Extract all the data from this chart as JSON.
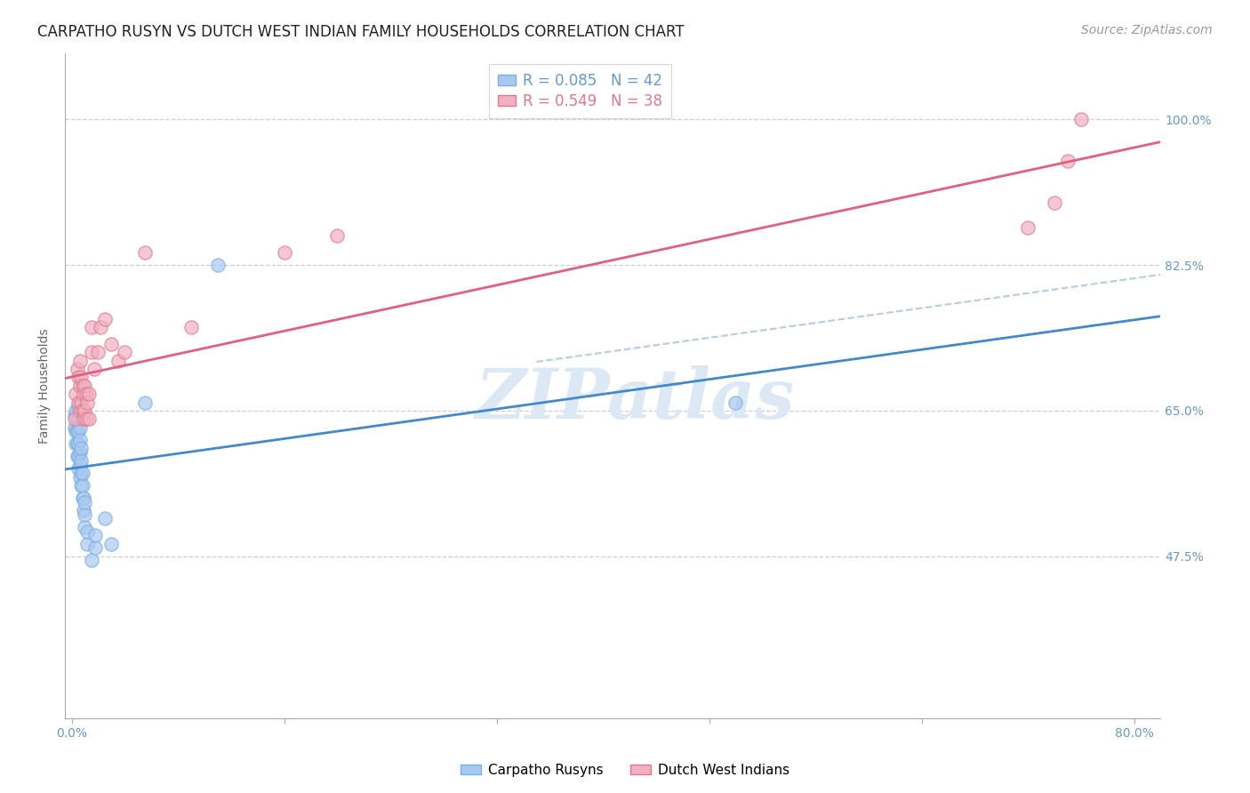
{
  "title": "CARPATHO RUSYN VS DUTCH WEST INDIAN FAMILY HOUSEHOLDS CORRELATION CHART",
  "source": "Source: ZipAtlas.com",
  "ylabel": "Family Households",
  "x_ticks": [
    0.0,
    0.16,
    0.32,
    0.48,
    0.64,
    0.8
  ],
  "x_tick_labels": [
    "0.0%",
    "",
    "",
    "",
    "",
    "80.0%"
  ],
  "y_ticks": [
    0.475,
    0.65,
    0.825,
    1.0
  ],
  "y_tick_labels": [
    "47.5%",
    "65.0%",
    "82.5%",
    "100.0%"
  ],
  "xlim": [
    -0.005,
    0.82
  ],
  "ylim": [
    0.28,
    1.08
  ],
  "legend_labels": [
    "R = 0.085   N = 42",
    "R = 0.549   N = 38"
  ],
  "carpatho_rusyns_x": [
    0.002,
    0.002,
    0.003,
    0.003,
    0.003,
    0.004,
    0.004,
    0.004,
    0.004,
    0.005,
    0.005,
    0.005,
    0.005,
    0.005,
    0.005,
    0.006,
    0.006,
    0.006,
    0.006,
    0.006,
    0.007,
    0.007,
    0.007,
    0.007,
    0.008,
    0.008,
    0.008,
    0.009,
    0.009,
    0.01,
    0.01,
    0.01,
    0.012,
    0.012,
    0.015,
    0.018,
    0.018,
    0.025,
    0.03,
    0.055,
    0.11,
    0.5
  ],
  "carpatho_rusyns_y": [
    0.63,
    0.645,
    0.61,
    0.625,
    0.65,
    0.595,
    0.61,
    0.625,
    0.64,
    0.58,
    0.595,
    0.61,
    0.625,
    0.64,
    0.655,
    0.57,
    0.585,
    0.6,
    0.615,
    0.63,
    0.56,
    0.575,
    0.59,
    0.605,
    0.545,
    0.56,
    0.575,
    0.53,
    0.545,
    0.51,
    0.525,
    0.54,
    0.49,
    0.505,
    0.47,
    0.485,
    0.5,
    0.52,
    0.49,
    0.66,
    0.825,
    0.66
  ],
  "dutch_west_indians_x": [
    0.002,
    0.003,
    0.004,
    0.005,
    0.005,
    0.006,
    0.006,
    0.006,
    0.007,
    0.007,
    0.008,
    0.008,
    0.009,
    0.009,
    0.01,
    0.01,
    0.011,
    0.011,
    0.012,
    0.013,
    0.013,
    0.015,
    0.015,
    0.017,
    0.02,
    0.022,
    0.025,
    0.03,
    0.035,
    0.04,
    0.055,
    0.09,
    0.16,
    0.2,
    0.72,
    0.74,
    0.75,
    0.76
  ],
  "dutch_west_indians_y": [
    0.64,
    0.67,
    0.7,
    0.66,
    0.69,
    0.65,
    0.68,
    0.71,
    0.66,
    0.69,
    0.65,
    0.68,
    0.64,
    0.67,
    0.65,
    0.68,
    0.64,
    0.67,
    0.66,
    0.64,
    0.67,
    0.72,
    0.75,
    0.7,
    0.72,
    0.75,
    0.76,
    0.73,
    0.71,
    0.72,
    0.84,
    0.75,
    0.84,
    0.86,
    0.87,
    0.9,
    0.95,
    1.0
  ],
  "blue_color": "#a8c8f0",
  "blue_edge": "#7ab0e0",
  "pink_color": "#f0b0c0",
  "pink_edge": "#e07890",
  "trend_blue_color": "#4488cc",
  "trend_pink_color": "#e06080",
  "dashed_blue_color": "#88aacc",
  "watermark_color": "#dde8f5",
  "axis_color": "#6699cc",
  "grid_color": "#ccccdd",
  "title_fontsize": 12,
  "label_fontsize": 10,
  "tick_fontsize": 10,
  "source_fontsize": 10
}
